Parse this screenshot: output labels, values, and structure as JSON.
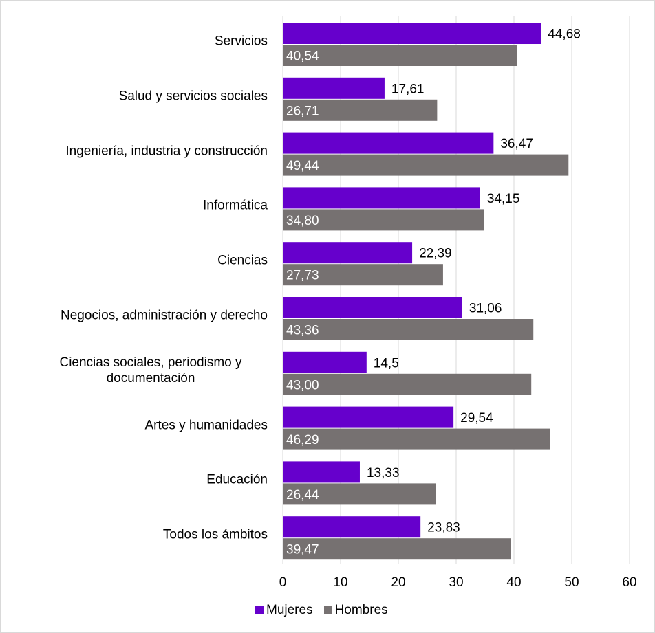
{
  "chart_data": {
    "type": "bar",
    "orientation": "horizontal",
    "categories": [
      "Servicios",
      "Salud y servicios sociales",
      "Ingeniería, industria y construcción",
      "Informática",
      "Ciencias",
      "Negocios, administración y derecho",
      "Ciencias sociales, periodismo y documentación",
      "Artes y humanidades",
      "Educación",
      "Todos los ámbitos"
    ],
    "series": [
      {
        "name": "Mujeres",
        "color": "#6600CC",
        "values": [
          44.68,
          17.61,
          36.47,
          34.15,
          22.39,
          31.06,
          14.5,
          29.54,
          13.33,
          23.83
        ],
        "labels": [
          "44,68",
          "17,61",
          "36,47",
          "34,15",
          "22,39",
          "31,06",
          "14,5",
          "29,54",
          "13,33",
          "23,83"
        ]
      },
      {
        "name": "Hombres",
        "color": "#767171",
        "values": [
          40.54,
          26.71,
          49.44,
          34.8,
          27.73,
          43.36,
          43.0,
          46.29,
          26.44,
          39.47
        ],
        "labels": [
          "40,54",
          "26,71",
          "49,44",
          "34,80",
          "27,73",
          "43,36",
          "43,00",
          "46,29",
          "26,44",
          "39,47"
        ]
      }
    ],
    "xlim": [
      0,
      60
    ],
    "xticks": [
      "0",
      "10",
      "20",
      "30",
      "40",
      "50",
      "60"
    ],
    "grid": true,
    "legend_position": "bottom"
  }
}
